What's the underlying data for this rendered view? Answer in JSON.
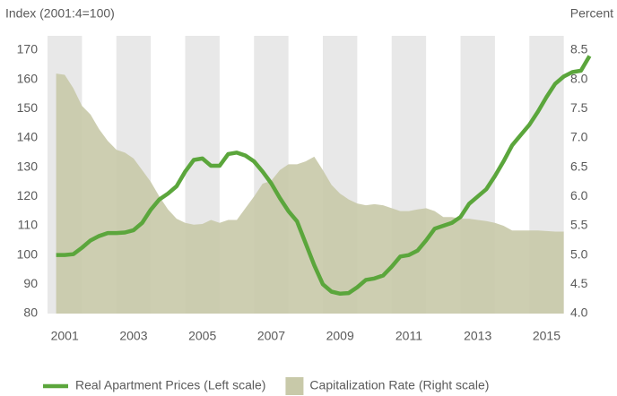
{
  "chart_data": {
    "type": "line",
    "y_label": "Index (2001:4=100)",
    "y2_label": "Percent",
    "x": [
      2000.75,
      2001,
      2001.25,
      2001.5,
      2001.75,
      2002,
      2002.25,
      2002.5,
      2002.75,
      2003,
      2003.25,
      2003.5,
      2003.75,
      2004,
      2004.25,
      2004.5,
      2004.75,
      2005,
      2005.25,
      2005.5,
      2005.75,
      2006,
      2006.25,
      2006.5,
      2006.75,
      2007,
      2007.25,
      2007.5,
      2007.75,
      2008,
      2008.25,
      2008.5,
      2008.75,
      2009,
      2009.25,
      2009.5,
      2009.75,
      2010,
      2010.25,
      2010.5,
      2010.75,
      2011,
      2011.25,
      2011.5,
      2011.75,
      2012,
      2012.25,
      2012.5,
      2012.75,
      2013,
      2013.25,
      2013.5,
      2013.75,
      2014,
      2014.25,
      2014.5,
      2014.75,
      2015,
      2015.25,
      2015.5,
      2015.75,
      2016,
      2016.25
    ],
    "series": [
      {
        "name": "Real Apartment Prices (Left scale)",
        "type": "line",
        "color": "#5ba63c",
        "values": [
          100,
          100,
          100.3,
          102.5,
          105,
          106.5,
          107.5,
          107.5,
          107.7,
          108.5,
          111,
          115.5,
          119,
          121,
          123.5,
          128.5,
          132.5,
          133,
          130.5,
          130.5,
          134.5,
          135,
          134,
          132,
          128.5,
          124.5,
          119.5,
          115,
          111.5,
          104,
          96.5,
          90,
          87.5,
          86.8,
          87,
          89,
          91.5,
          92,
          93,
          96,
          99.5,
          100,
          101.5,
          105,
          109,
          110,
          111,
          113,
          117.5,
          120,
          122.5,
          127,
          132,
          137.5,
          141,
          144.5,
          149,
          154,
          158.5,
          161,
          162.5,
          163,
          168
        ]
      },
      {
        "name": "Capitalization Rate (Right scale)",
        "type": "area",
        "axis": "y2",
        "color": "#c8c9a9",
        "values": [
          8.1,
          8.08,
          7.85,
          7.55,
          7.4,
          7.15,
          6.95,
          6.8,
          6.75,
          6.65,
          6.45,
          6.25,
          6.0,
          5.78,
          5.62,
          5.55,
          5.52,
          5.53,
          5.6,
          5.55,
          5.6,
          5.6,
          5.8,
          6.0,
          6.22,
          6.27,
          6.45,
          6.55,
          6.55,
          6.6,
          6.68,
          6.45,
          6.2,
          6.05,
          5.95,
          5.88,
          5.85,
          5.87,
          5.85,
          5.8,
          5.75,
          5.75,
          5.78,
          5.8,
          5.75,
          5.65,
          5.65,
          5.62,
          5.62,
          5.6,
          5.58,
          5.55,
          5.5,
          5.42,
          5.42,
          5.42,
          5.42,
          5.41,
          5.4,
          5.4,
          null,
          null,
          null
        ]
      }
    ],
    "xlim": [
      2000.5,
      2016.5
    ],
    "xticks": [
      2001,
      2003,
      2005,
      2007,
      2009,
      2011,
      2013,
      2015
    ],
    "ylim": [
      80,
      170
    ],
    "yticks": [
      80,
      90,
      100,
      110,
      120,
      130,
      140,
      150,
      160,
      170
    ],
    "y2lim": [
      4,
      8.5
    ],
    "y2ticks": [
      {
        "value": 4,
        "label": "4.0"
      },
      4.5,
      {
        "value": 5,
        "label": "5.0"
      },
      5.5,
      {
        "value": 6,
        "label": "6.0"
      },
      6.5,
      {
        "value": 7,
        "label": "7.0"
      },
      7.5,
      {
        "value": 8,
        "label": "8.0"
      },
      8.5
    ],
    "legend": "bottom"
  }
}
